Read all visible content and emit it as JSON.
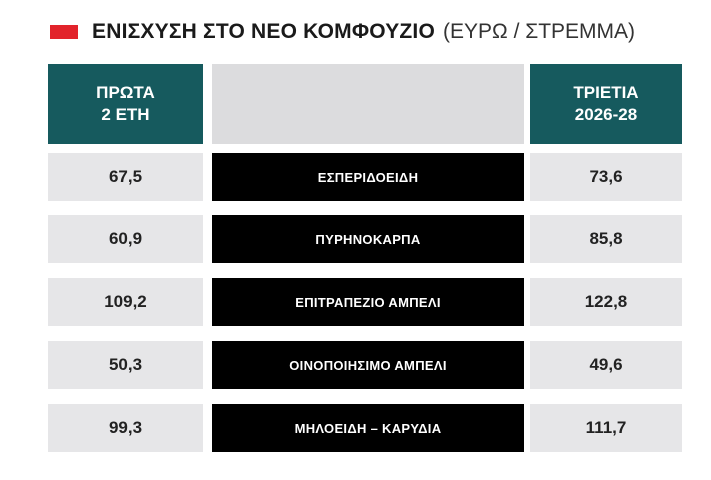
{
  "title": {
    "main": "ΕΝΙΣΧΥΣΗ ΣΤΟ ΝΕΟ ΚΟΜΦΟΥΖΙΟ",
    "unit": "(ΕΥΡΩ / ΣΤΡΕΜΜΑ)",
    "accent_color": "#e2232b"
  },
  "chart_data": {
    "type": "table",
    "columns": [
      {
        "label_line1": "ΠΡΩΤΑ",
        "label_line2": "2 ΕΤΗ"
      },
      {
        "label_line1": "",
        "label_line2": ""
      },
      {
        "label_line1": "ΤΡΙΕΤΙΑ",
        "label_line2": "2026-28"
      }
    ],
    "rows": [
      {
        "first_two_years": "67,5",
        "crop": "ΕΣΠΕΡΙΔΟΕΙΔΗ",
        "triennium": "73,6"
      },
      {
        "first_two_years": "60,9",
        "crop": "ΠΥΡΗΝΟΚΑΡΠΑ",
        "triennium": "85,8"
      },
      {
        "first_two_years": "109,2",
        "crop": "ΕΠΙΤΡΑΠΕΖΙΟ ΑΜΠΕΛΙ",
        "triennium": "122,8"
      },
      {
        "first_two_years": "50,3",
        "crop": "ΟΙΝΟΠΟΙΗΣΙΜΟ ΑΜΠΕΛΙ",
        "triennium": "49,6"
      },
      {
        "first_two_years": "99,3",
        "crop": "ΜΗΛΟΕΙΔΗ – ΚΑΡΥΔΙΑ",
        "triennium": "111,7"
      }
    ],
    "header_color": "#165a5e",
    "crop_cell_color": "#000000",
    "value_cell_color": "#e6e6e8"
  }
}
